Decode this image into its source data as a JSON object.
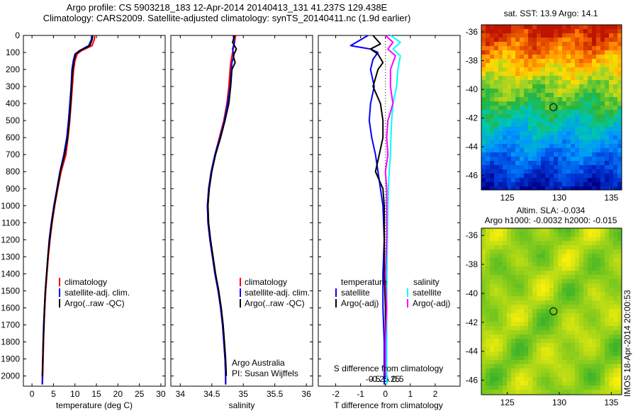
{
  "header": {
    "line1": "Argo profile: CS 5903218_183 12-Apr-2014 20140413_131 41.237S 129.438E",
    "line2": "Climatology: CARS2009. Satellite-adjusted climatology: synTS_20140411.nc (1.9d earlier)"
  },
  "footer_stamp": "IMOS 18-Apr-2014 20:00:53",
  "colors": {
    "climatology": "#ff0000",
    "satellite": "#0000ff",
    "argo": "#000000",
    "sat_salinity": "#00ffff",
    "argo_salinity": "#ff00ff"
  },
  "chart_data": [
    {
      "type": "line",
      "xlabel": "temperature (deg C)",
      "xlim": [
        -2,
        31
      ],
      "ylim": [
        2060,
        0
      ],
      "xticks": [
        0,
        5,
        10,
        15,
        20,
        25,
        30
      ],
      "yticks": [
        0,
        100,
        200,
        300,
        400,
        500,
        600,
        700,
        800,
        900,
        1000,
        1100,
        1200,
        1300,
        1400,
        1500,
        1600,
        1700,
        1800,
        1900,
        2000
      ],
      "legend": [
        "climatology",
        "satellite-adj. clim.",
        "Argo(..raw -QC)"
      ],
      "series": [
        {
          "name": "climatology",
          "color": "#ff0000",
          "x": [
            14.6,
            14.5,
            14.0,
            11.5,
            10.5,
            10.0,
            9.7,
            9.4,
            9.1,
            8.8,
            8.4,
            7.9,
            6.8,
            6.0,
            5.3,
            4.7,
            4.2,
            3.8,
            3.5,
            3.2,
            3.0,
            2.8,
            2.7,
            2.6,
            2.5,
            2.4
          ],
          "y": [
            0,
            25,
            60,
            90,
            110,
            150,
            200,
            300,
            400,
            500,
            600,
            700,
            800,
            900,
            1000,
            1100,
            1200,
            1300,
            1400,
            1500,
            1600,
            1700,
            1800,
            1900,
            2000,
            2050
          ]
        },
        {
          "name": "satellite-adj. clim.",
          "color": "#0000ff",
          "x": [
            13.9,
            13.8,
            13.2,
            11.0,
            10.0,
            9.6,
            9.3,
            9.1,
            8.8,
            8.5,
            8.1,
            7.4,
            6.5,
            5.8,
            5.1,
            4.5,
            4.0,
            3.7,
            3.4,
            3.1,
            2.9,
            2.7,
            2.6,
            2.5,
            2.4,
            2.4
          ],
          "y": [
            0,
            25,
            60,
            90,
            110,
            150,
            200,
            300,
            400,
            500,
            600,
            700,
            800,
            900,
            1000,
            1100,
            1200,
            1300,
            1400,
            1500,
            1600,
            1700,
            1800,
            1900,
            2000,
            2050
          ]
        },
        {
          "name": "Argo(..raw -QC)",
          "color": "#000000",
          "x": [
            14.1,
            14.0,
            13.5,
            11.2,
            10.2,
            9.8,
            9.5,
            9.2,
            9.0,
            8.7,
            8.3,
            7.6,
            6.6,
            5.9,
            5.2,
            4.6,
            4.1,
            3.7,
            3.4,
            3.1,
            2.9,
            2.8,
            2.6,
            2.5,
            2.4
          ],
          "y": [
            0,
            25,
            60,
            90,
            110,
            150,
            200,
            300,
            400,
            500,
            600,
            700,
            800,
            900,
            1000,
            1100,
            1200,
            1300,
            1400,
            1500,
            1600,
            1700,
            1800,
            1900,
            2000
          ]
        }
      ]
    },
    {
      "type": "line",
      "xlabel": "salinity",
      "xlim": [
        33.85,
        36.1
      ],
      "ylim": [
        2060,
        0
      ],
      "xticks": [
        34,
        34.5,
        35,
        35.5,
        36
      ],
      "xticklabels": [
        "34",
        "34.5",
        "35",
        "35.5",
        "36"
      ],
      "legend": [
        "climatology",
        "satellite-adj. clim.",
        "Argo(..raw -QC)"
      ],
      "notes": [
        "Argo Australia",
        "PI: Susan Wijffels"
      ],
      "series": [
        {
          "name": "climatology",
          "color": "#ff0000",
          "x": [
            34.88,
            34.86,
            34.84,
            34.82,
            34.8,
            34.79,
            34.77,
            34.74,
            34.69,
            34.62,
            34.55,
            34.49,
            34.45,
            34.43,
            34.44,
            34.47,
            34.51,
            34.55,
            34.6,
            34.64,
            34.67,
            34.69,
            34.71,
            34.72,
            34.72
          ],
          "y": [
            0,
            40,
            80,
            120,
            160,
            200,
            300,
            400,
            500,
            600,
            700,
            800,
            900,
            1000,
            1100,
            1200,
            1300,
            1400,
            1500,
            1600,
            1700,
            1800,
            1900,
            2000,
            2050
          ]
        },
        {
          "name": "satellite-adj. clim.",
          "color": "#0000ff",
          "x": [
            34.84,
            34.86,
            34.83,
            34.85,
            34.82,
            34.81,
            34.79,
            34.75,
            34.7,
            34.63,
            34.55,
            34.49,
            34.45,
            34.43,
            34.44,
            34.47,
            34.51,
            34.55,
            34.6,
            34.64,
            34.67,
            34.69,
            34.71,
            34.72,
            34.72
          ],
          "y": [
            0,
            40,
            80,
            120,
            160,
            200,
            300,
            400,
            500,
            600,
            700,
            800,
            900,
            1000,
            1100,
            1200,
            1300,
            1400,
            1500,
            1600,
            1700,
            1800,
            1900,
            2000,
            2050
          ]
        },
        {
          "name": "Argo(..raw -QC)",
          "color": "#000000",
          "x": [
            34.86,
            34.83,
            34.89,
            34.84,
            34.87,
            34.82,
            34.8,
            34.77,
            34.71,
            34.64,
            34.56,
            34.5,
            34.46,
            34.44,
            34.45,
            34.48,
            34.52,
            34.56,
            34.61,
            34.65,
            34.68,
            34.7,
            34.72,
            34.73
          ],
          "y": [
            0,
            40,
            80,
            120,
            160,
            200,
            300,
            400,
            500,
            600,
            700,
            800,
            900,
            1000,
            1100,
            1200,
            1300,
            1400,
            1500,
            1600,
            1700,
            1800,
            1900,
            2000
          ]
        }
      ]
    },
    {
      "type": "line",
      "xlabel": "T difference from climatology",
      "xlabel2": "S difference from climatology",
      "xlim": [
        -2.7,
        3.0
      ],
      "ylim": [
        2060,
        0
      ],
      "xticks": [
        -2,
        -1,
        0,
        1,
        2
      ],
      "xticks_s": [
        -0.5,
        -0.25,
        0,
        0.25,
        0.5
      ],
      "xticklabels_s": [
        "-0.5",
        "-0.25",
        "0",
        "0.25",
        "0.5"
      ],
      "legend_temperature": {
        "title": "temperature",
        "items": [
          "satellite",
          "Argo(-adj)"
        ]
      },
      "legend_salinity": {
        "title": "salinity",
        "items": [
          "satellite",
          "Argo(-adj)"
        ]
      },
      "series": [
        {
          "name": "satellite",
          "group": "temperature",
          "color": "#0000ff",
          "x": [
            -0.7,
            -1.4,
            -0.6,
            -0.3,
            -0.5,
            -0.6,
            -0.45,
            -0.6,
            -0.65,
            -0.55,
            -0.4,
            -0.3,
            -0.2,
            -0.1,
            -0.05,
            -0.1,
            -0.1,
            -0.05,
            -0.05,
            -0.05
          ],
          "y": [
            0,
            60,
            80,
            100,
            140,
            200,
            300,
            400,
            500,
            600,
            700,
            800,
            900,
            1000,
            1200,
            1400,
            1600,
            1800,
            2000,
            2050
          ]
        },
        {
          "name": "Argo(-adj)",
          "group": "temperature",
          "color": "#000000",
          "x": [
            -0.5,
            -0.2,
            -0.6,
            -0.3,
            -0.1,
            -0.3,
            -0.5,
            -0.2,
            -0.1,
            -0.1,
            -0.25,
            -0.4,
            -0.1,
            -0.05,
            -0.05,
            -0.05,
            0.0,
            0.0,
            0.0
          ],
          "y": [
            0,
            50,
            80,
            110,
            160,
            200,
            300,
            400,
            500,
            600,
            700,
            800,
            900,
            1000,
            1200,
            1400,
            1600,
            1800,
            2000
          ]
        },
        {
          "name": "satellite",
          "group": "salinity",
          "color": "#00ffff",
          "x": [
            0.2,
            0.6,
            0.3,
            0.6,
            0.55,
            0.5,
            0.45,
            0.3,
            0.25,
            0.22,
            0.2,
            0.15,
            0.12,
            0.1,
            0.08,
            0.06,
            0.05,
            0.05,
            0.05,
            0.05
          ],
          "y": [
            0,
            40,
            80,
            120,
            160,
            200,
            300,
            400,
            500,
            600,
            700,
            800,
            900,
            1000,
            1200,
            1400,
            1600,
            1800,
            2000,
            2050
          ]
        },
        {
          "name": "Argo(-adj)",
          "group": "salinity",
          "color": "#ff00ff",
          "x": [
            0.0,
            0.3,
            0.1,
            0.4,
            0.3,
            0.2,
            0.2,
            0.3,
            0.1,
            0.05,
            0.1,
            0.0,
            0.05,
            0.05,
            0.05,
            0.0,
            0.05,
            0.0,
            0.0
          ],
          "y": [
            0,
            40,
            80,
            120,
            160,
            200,
            300,
            400,
            500,
            600,
            700,
            800,
            900,
            1000,
            1200,
            1400,
            1600,
            1800,
            2000
          ]
        }
      ]
    },
    {
      "type": "heatmap",
      "title": "sat. SST: 13.9  Argo: 14.1",
      "xlim": [
        122.5,
        136
      ],
      "ylim": [
        -47,
        -35.5
      ],
      "xticks": [
        125,
        130,
        135
      ],
      "yticks": [
        -36,
        -38,
        -40,
        -42,
        -44,
        -46
      ],
      "field": "sea surface temperature",
      "marker": {
        "lon": 129.438,
        "lat": -41.237
      }
    },
    {
      "type": "heatmap",
      "title": "Altim. SLA: -0.034",
      "subtitle": "Argo h1000: -0.0032  h2000: -0.015",
      "xlim": [
        122.5,
        136
      ],
      "ylim": [
        -47,
        -35.5
      ],
      "xticks": [
        125,
        130,
        135
      ],
      "yticks": [
        -36,
        -38,
        -40,
        -42,
        -44,
        -46
      ],
      "field": "sea level anomaly",
      "marker": {
        "lon": 129.438,
        "lat": -41.237
      }
    }
  ]
}
